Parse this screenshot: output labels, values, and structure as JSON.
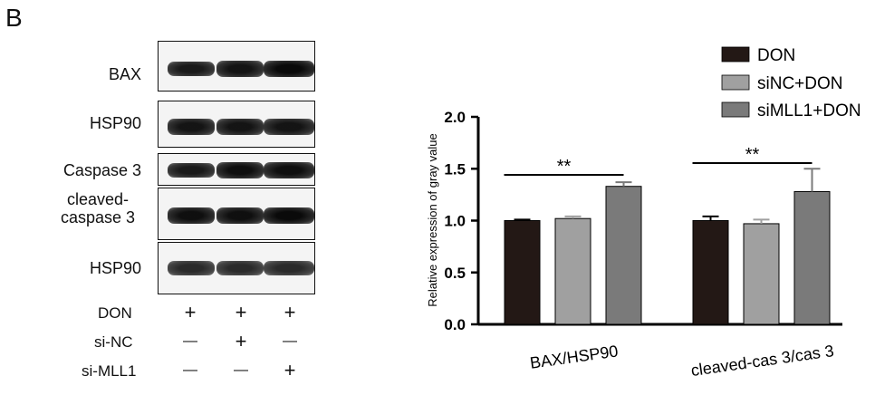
{
  "panel_label": "B",
  "blot": {
    "rows": [
      {
        "label": "BAX",
        "intensity": [
          0.85,
          0.9,
          1.0
        ]
      },
      {
        "label": "HSP90",
        "intensity": [
          0.9,
          0.9,
          0.9
        ]
      },
      {
        "label": "Caspase 3",
        "intensity": [
          0.85,
          0.95,
          0.95
        ]
      },
      {
        "label": "cleaved-\ncaspase 3",
        "intensity": [
          0.95,
          0.95,
          1.0
        ]
      },
      {
        "label": "HSP90",
        "intensity": [
          0.7,
          0.7,
          0.7
        ]
      }
    ],
    "conditions": [
      {
        "label": "DON",
        "marks": [
          "+",
          "+",
          "+"
        ]
      },
      {
        "label": "si-NC",
        "marks": [
          "—",
          "+",
          "—"
        ]
      },
      {
        "label": "si-MLL1",
        "marks": [
          "—",
          "—",
          "+"
        ]
      }
    ]
  },
  "chart_data": {
    "type": "bar",
    "ylabel": "Relative expression of gray value",
    "xlabel": "",
    "ylim": [
      0,
      2.0
    ],
    "yticks": [
      "0.0",
      "0.5",
      "1.0",
      "1.5",
      "2.0"
    ],
    "categories": [
      "BAX/HSP90",
      "cleaved-cas 3/cas 3"
    ],
    "series": [
      {
        "name": "DON",
        "color": "#231815",
        "values": [
          1.0,
          1.0
        ],
        "errors": [
          0.01,
          0.04
        ]
      },
      {
        "name": "siNC+DON",
        "color": "#a0a0a0",
        "values": [
          1.02,
          0.97
        ],
        "errors": [
          0.02,
          0.04
        ]
      },
      {
        "name": "siMLL1+DON",
        "color": "#7a7a7a",
        "values": [
          1.33,
          1.28
        ],
        "errors": [
          0.04,
          0.22
        ]
      }
    ],
    "significance": [
      "**",
      "**"
    ],
    "legend_position": "top-right"
  }
}
